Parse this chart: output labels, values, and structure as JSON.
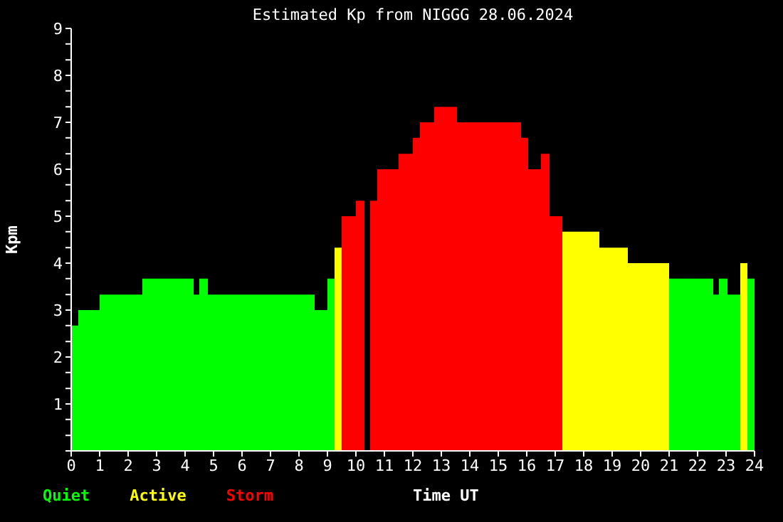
{
  "chart_data": {
    "type": "histogram",
    "title": "Estimated Kp from NIGGG 28.06.2024",
    "xlabel": "Time UT",
    "ylabel": "Kpm",
    "bins": [
      0,
      0.25,
      1,
      2.5,
      4.3,
      4.5,
      4.8,
      8.55,
      9,
      9.25,
      9.5,
      10,
      10.3,
      10.5,
      10.75,
      11.5,
      12,
      12.25,
      12.75,
      13.55,
      15.8,
      16.05,
      16.5,
      16.8,
      17.25,
      18.55,
      19.55,
      21,
      22.55,
      22.75,
      23.05,
      23.5,
      23.75,
      24
    ],
    "series": [
      {
        "name": "Quiet",
        "color": "#00ff00",
        "values": [
          2.67,
          3,
          3.33,
          3.67,
          3.33,
          3.67,
          3.33,
          3,
          3.67,
          null,
          null,
          null,
          null,
          null,
          null,
          null,
          null,
          null,
          null,
          null,
          null,
          null,
          null,
          null,
          null,
          null,
          null,
          3.67,
          3.33,
          3.67,
          3.33,
          null,
          3.67
        ]
      },
      {
        "name": "Active",
        "color": "#ffff00",
        "values": [
          null,
          null,
          null,
          null,
          null,
          null,
          null,
          null,
          null,
          4.33,
          null,
          null,
          null,
          null,
          null,
          null,
          null,
          null,
          null,
          null,
          null,
          null,
          null,
          null,
          4.67,
          4.33,
          4,
          null,
          null,
          null,
          null,
          4,
          null
        ]
      },
      {
        "name": "Storm",
        "color": "#ff0000",
        "values": [
          null,
          null,
          null,
          null,
          null,
          null,
          null,
          null,
          null,
          null,
          5,
          5.33,
          null,
          5.33,
          6,
          6.33,
          6.67,
          7,
          7.33,
          7,
          6.67,
          6,
          6.33,
          5,
          null,
          null,
          null,
          null,
          null,
          null,
          null,
          null,
          null
        ]
      }
    ],
    "xlim": [
      0,
      24
    ],
    "xticks": [
      0,
      1,
      2,
      3,
      4,
      5,
      6,
      7,
      8,
      9,
      10,
      11,
      12,
      13,
      14,
      15,
      16,
      17,
      18,
      19,
      20,
      21,
      22,
      23,
      24
    ],
    "ylim": [
      0,
      9
    ],
    "yticks": [
      {
        "value": 0,
        "label": null
      },
      {
        "value": 0.33,
        "label": null
      },
      {
        "value": 0.67,
        "label": null
      },
      1,
      {
        "value": 1.33,
        "label": null
      },
      {
        "value": 1.67,
        "label": null
      },
      2,
      {
        "value": 2.33,
        "label": null
      },
      {
        "value": 2.67,
        "label": null
      },
      3,
      {
        "value": 3.33,
        "label": null
      },
      {
        "value": 3.67,
        "label": null
      },
      4,
      {
        "value": 4.33,
        "label": null
      },
      {
        "value": 4.67,
        "label": null
      },
      5,
      {
        "value": 5.33,
        "label": null
      },
      {
        "value": 5.67,
        "label": null
      },
      6,
      {
        "value": 6.33,
        "label": null
      },
      {
        "value": 6.67,
        "label": null
      },
      7,
      {
        "value": 7.33,
        "label": null
      },
      {
        "value": 7.67,
        "label": null
      },
      8,
      {
        "value": 8.33,
        "label": null
      },
      {
        "value": 8.67,
        "label": null
      },
      9
    ],
    "legend": "bottom left",
    "grid": false
  }
}
